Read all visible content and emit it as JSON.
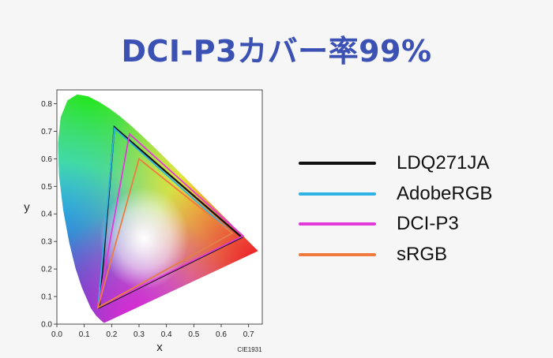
{
  "page": {
    "title": "DCI-P3カバー率99%"
  },
  "chart_data": {
    "type": "scatter",
    "xlabel": "x",
    "ylabel": "y",
    "xlim": [
      0.0,
      0.75
    ],
    "ylim": [
      0.0,
      0.85
    ],
    "xticks": [
      "0.0",
      "0.1",
      "0.2",
      "0.3",
      "0.4",
      "0.5",
      "0.6",
      "0.7"
    ],
    "yticks": [
      "0.0",
      "0.1",
      "0.2",
      "0.3",
      "0.4",
      "0.5",
      "0.6",
      "0.7",
      "0.8"
    ],
    "source_label": "CIE1931",
    "series": [
      {
        "name": "LDQ271JA",
        "color": "#111111",
        "points": [
          [
            0.675,
            0.315
          ],
          [
            0.21,
            0.715
          ],
          [
            0.155,
            0.06
          ]
        ]
      },
      {
        "name": "AdobeRGB",
        "color": "#2eb3e6",
        "points": [
          [
            0.64,
            0.33
          ],
          [
            0.21,
            0.71
          ],
          [
            0.15,
            0.06
          ]
        ]
      },
      {
        "name": "DCI-P3",
        "color": "#e23ad9",
        "points": [
          [
            0.68,
            0.32
          ],
          [
            0.265,
            0.69
          ],
          [
            0.15,
            0.06
          ]
        ]
      },
      {
        "name": "sRGB",
        "color": "#f07b3f",
        "points": [
          [
            0.64,
            0.33
          ],
          [
            0.3,
            0.6
          ],
          [
            0.15,
            0.06
          ]
        ]
      }
    ],
    "legend_position": "right",
    "grid": false
  }
}
